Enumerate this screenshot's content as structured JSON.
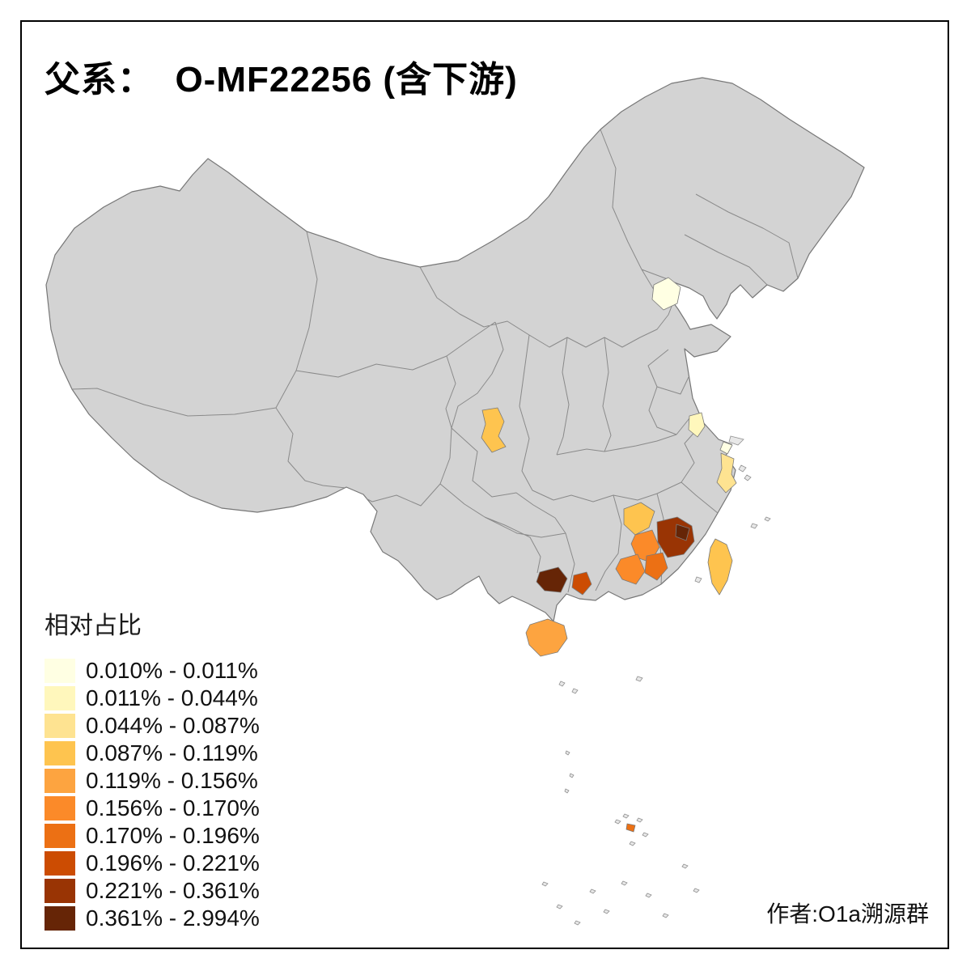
{
  "title": "父系：  O-MF22256 (含下游)",
  "author": "作者:O1a溯源群",
  "legend": {
    "title": "相对占比",
    "items": [
      {
        "label": "0.010% - 0.011%",
        "color": "#FFFFE3"
      },
      {
        "label": "0.011% - 0.044%",
        "color": "#FFF7BC"
      },
      {
        "label": "0.044% - 0.087%",
        "color": "#FEE391"
      },
      {
        "label": "0.087% - 0.119%",
        "color": "#FEC44F"
      },
      {
        "label": "0.119% - 0.156%",
        "color": "#FDA440"
      },
      {
        "label": "0.156% - 0.170%",
        "color": "#FB8A29"
      },
      {
        "label": "0.170% - 0.196%",
        "color": "#EC7014"
      },
      {
        "label": "0.196% - 0.221%",
        "color": "#CC4C02"
      },
      {
        "label": "0.221% - 0.361%",
        "color": "#993404"
      },
      {
        "label": "0.361% - 2.994%",
        "color": "#662506"
      }
    ]
  },
  "map": {
    "base_fill": "#D3D3D3",
    "border_color": "#8A8A8A",
    "outline_color": "#777777",
    "regions": [
      {
        "name": "beijing",
        "range": "0.010% - 0.011%",
        "color": "#FFFFE3"
      },
      {
        "name": "jiangsu",
        "range": "0.011% - 0.044%",
        "color": "#FFF7BC"
      },
      {
        "name": "shanghai",
        "range": "0.010% - 0.011%",
        "color": "#FFFFE3"
      },
      {
        "name": "zhejiang-coast",
        "range": "0.044% - 0.087%",
        "color": "#FEE391"
      },
      {
        "name": "sichuan-chengdu",
        "range": "0.087% - 0.119%",
        "color": "#FEC44F"
      },
      {
        "name": "jiangxi-north",
        "range": "0.087% - 0.119%",
        "color": "#FEC44F"
      },
      {
        "name": "jiangxi-south",
        "range": "0.156% - 0.170%",
        "color": "#FB8A29"
      },
      {
        "name": "fujian-west",
        "range": "0.221% - 0.361%",
        "color": "#993404"
      },
      {
        "name": "fujian-core",
        "range": "0.361% - 2.994%",
        "color": "#662506"
      },
      {
        "name": "guangdong-east",
        "range": "0.170% - 0.196%",
        "color": "#EC7014"
      },
      {
        "name": "guangdong-central",
        "range": "0.156% - 0.170%",
        "color": "#FB8A29"
      },
      {
        "name": "guangxi-south",
        "range": "0.361% - 2.994%",
        "color": "#662506"
      },
      {
        "name": "guangxi-west",
        "range": "0.196% - 0.221%",
        "color": "#CC4C02"
      },
      {
        "name": "taiwan",
        "range": "0.087% - 0.119%",
        "color": "#FEC44F"
      },
      {
        "name": "hainan",
        "range": "0.119% - 0.156%",
        "color": "#FDA440"
      },
      {
        "name": "south-sea-islet",
        "range": "0.170% - 0.196%",
        "color": "#EC7014"
      }
    ]
  }
}
